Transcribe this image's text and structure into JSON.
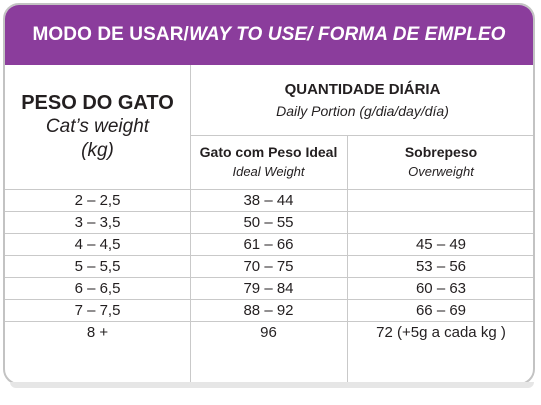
{
  "header": {
    "title_pt": "MODO DE USAR/ ",
    "title_en_es": "WAY TO USE/ FORMA DE EMPLEO"
  },
  "columns": {
    "weight": {
      "pt": "PESO DO GATO",
      "en": "Cat’s weight",
      "unit": "(kg)"
    },
    "daily": {
      "pt": "QUANTIDADE DIÁRIA",
      "en": "Daily Portion (g/dia/day/día)"
    },
    "ideal": {
      "pt": "Gato com Peso Ideal",
      "en": "Ideal Weight"
    },
    "over": {
      "pt": "Sobrepeso",
      "en": "Overweight"
    }
  },
  "rows": [
    {
      "weight": "2 – 2,5",
      "ideal": "38 – 44",
      "over": ""
    },
    {
      "weight": "3 – 3,5",
      "ideal": "50 – 55",
      "over": ""
    },
    {
      "weight": "4 – 4,5",
      "ideal": "61 – 66",
      "over": "45 – 49"
    },
    {
      "weight": "5 – 5,5",
      "ideal": "70 – 75",
      "over": "53 – 56"
    },
    {
      "weight": "6 – 6,5",
      "ideal": "79 – 84",
      "over": "60 – 63"
    },
    {
      "weight": "7 – 7,5",
      "ideal": "88 – 92",
      "over": "66 – 69"
    },
    {
      "weight": "8 +",
      "ideal": "96",
      "over": "72 (+5g a cada kg )"
    }
  ]
}
